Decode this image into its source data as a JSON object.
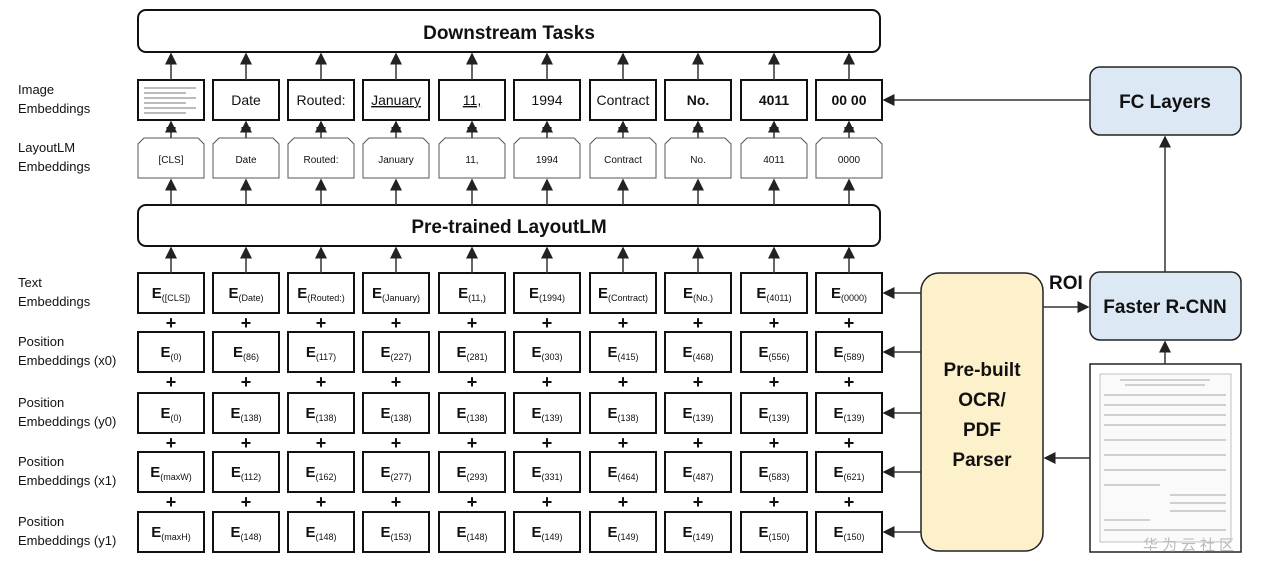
{
  "title_box": "Downstream Tasks",
  "pretrained_box": "Pre-trained LayoutLM",
  "ocr_box": [
    "Pre-built",
    "OCR/",
    "PDF",
    "Parser"
  ],
  "faster_rcnn": "Faster R-CNN",
  "fc_layers": "FC Layers",
  "roi_label": "ROI",
  "watermark": "华为云社区",
  "row_labels": {
    "image": [
      "Image",
      "Embeddings"
    ],
    "layoutlm": [
      "LayoutLM",
      "Embeddings"
    ],
    "text": [
      "Text",
      "Embeddings"
    ],
    "x0": [
      "Position",
      "Embeddings (x0)"
    ],
    "y0": [
      "Position",
      "Embeddings (y0)"
    ],
    "x1": [
      "Position",
      "Embeddings (x1)"
    ],
    "y1": [
      "Position",
      "Embeddings (y1)"
    ]
  },
  "image_tokens": [
    "",
    "Date",
    "Routed:",
    "January",
    "11,",
    "1994",
    "Contract",
    "No.",
    "4011",
    "00 00"
  ],
  "layoutlm_tokens": [
    "[CLS]",
    "Date",
    "Routed:",
    "January",
    "11,",
    "1994",
    "Contract",
    "No.",
    "4011",
    "0000"
  ],
  "text_subs": [
    "([CLS])",
    "(Date)",
    "(Routed:)",
    "(January)",
    "(11,)",
    "(1994)",
    "(Contract)",
    "(No.)",
    "(4011)",
    "(0000)"
  ],
  "x0_subs": [
    "(0)",
    "(86)",
    "(117)",
    "(227)",
    "(281)",
    "(303)",
    "(415)",
    "(468)",
    "(556)",
    "(589)"
  ],
  "y0_subs": [
    "(0)",
    "(138)",
    "(138)",
    "(138)",
    "(138)",
    "(139)",
    "(138)",
    "(139)",
    "(139)",
    "(139)"
  ],
  "x1_subs": [
    "(maxW)",
    "(112)",
    "(162)",
    "(277)",
    "(293)",
    "(331)",
    "(464)",
    "(487)",
    "(583)",
    "(621)"
  ],
  "y1_subs": [
    "(maxH)",
    "(148)",
    "(148)",
    "(153)",
    "(148)",
    "(149)",
    "(149)",
    "(149)",
    "(150)",
    "(150)"
  ],
  "plus_sign": "+",
  "embedding_letter": "E",
  "colors": {
    "ocr_fill": "#fdf1cc",
    "model_fill": "#dce9f5"
  }
}
